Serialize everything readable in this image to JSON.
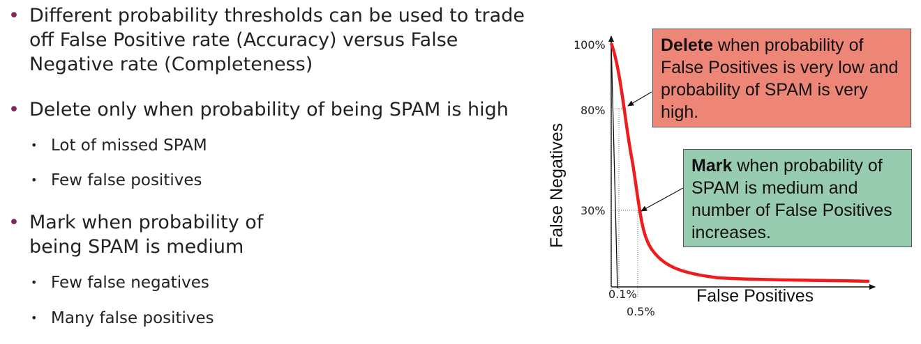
{
  "bullets": {
    "b1": {
      "lines": [
        "Different probability thresholds can be used to trade",
        "off False Positive rate (Accuracy) versus False",
        "Negative rate (Completeness)"
      ]
    },
    "b2": "Delete only when probability of being SPAM is high",
    "b2_sub": [
      "Lot of missed SPAM",
      "Few false positives"
    ],
    "b3": {
      "lines": [
        "Mark when probability of",
        "being SPAM is medium"
      ]
    },
    "b3_sub": [
      "Few  false negatives",
      "Many false positives"
    ]
  },
  "chart": {
    "xlabel": "False Positives",
    "ylabel": "False Negatives",
    "y_ticks": [
      "100%",
      "80%",
      "30%"
    ],
    "x_ticks": [
      "0.1%",
      "0.5%"
    ],
    "curve_color": "#ee1c1c",
    "callout_delete": {
      "bold": "Delete",
      "text": " when probability of False Positives is very low and probability of SPAM is very high.",
      "color": "#ed8676"
    },
    "callout_mark": {
      "bold": "Mark",
      "text": " when probability of SPAM is medium and number of False Positives increases.",
      "color": "#98ccb0"
    }
  },
  "chart_data": {
    "type": "line",
    "xlabel": "False Positives",
    "ylabel": "False Negatives",
    "y_tick_labels": [
      "100%",
      "80%",
      "30%"
    ],
    "x_tick_labels": [
      "0.1%",
      "0.5%"
    ],
    "series": [
      {
        "points": [
          [
            0.0,
            100
          ],
          [
            0.1,
            80
          ],
          [
            0.5,
            30
          ],
          [
            1.0,
            15
          ],
          [
            2.0,
            8
          ],
          [
            5.0,
            4
          ],
          [
            10.0,
            3
          ]
        ]
      }
    ]
  }
}
